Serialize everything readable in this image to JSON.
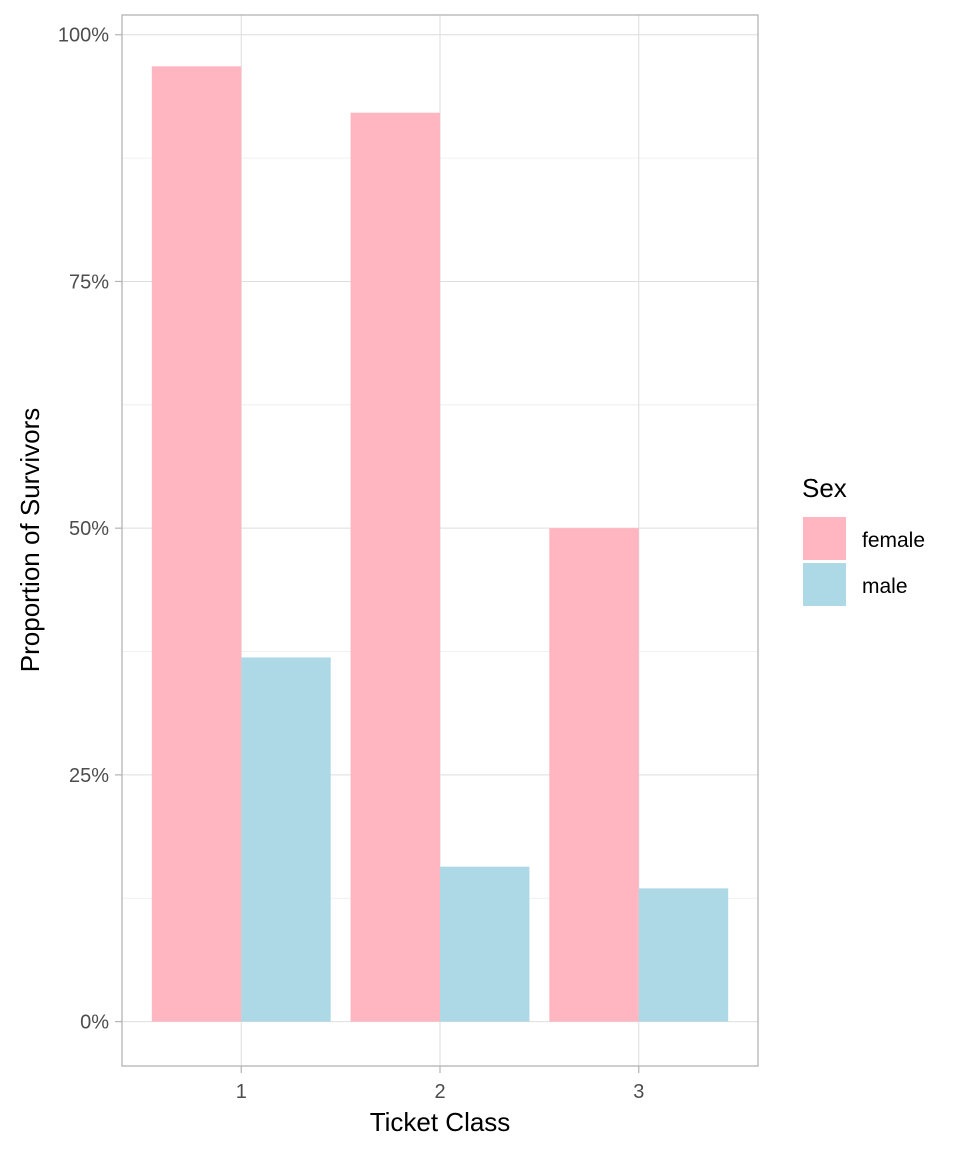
{
  "chart_data": {
    "type": "bar",
    "categories": [
      "1",
      "2",
      "3"
    ],
    "series": [
      {
        "name": "female",
        "values": [
          0.968,
          0.921,
          0.5
        ],
        "color": "#FFB6C1"
      },
      {
        "name": "male",
        "values": [
          0.369,
          0.157,
          0.135
        ],
        "color": "#ADD8E6"
      }
    ],
    "xlabel": "Ticket Class",
    "ylabel": "Proportion of Survivors",
    "ylim": [
      -0.045,
      1.02
    ],
    "yticks": [
      0,
      0.25,
      0.5,
      0.75,
      1.0
    ],
    "ytick_labels": [
      "0%",
      "25%",
      "50%",
      "75%",
      "100%"
    ],
    "legend": {
      "title": "Sex",
      "position": "right"
    },
    "grid": true
  }
}
